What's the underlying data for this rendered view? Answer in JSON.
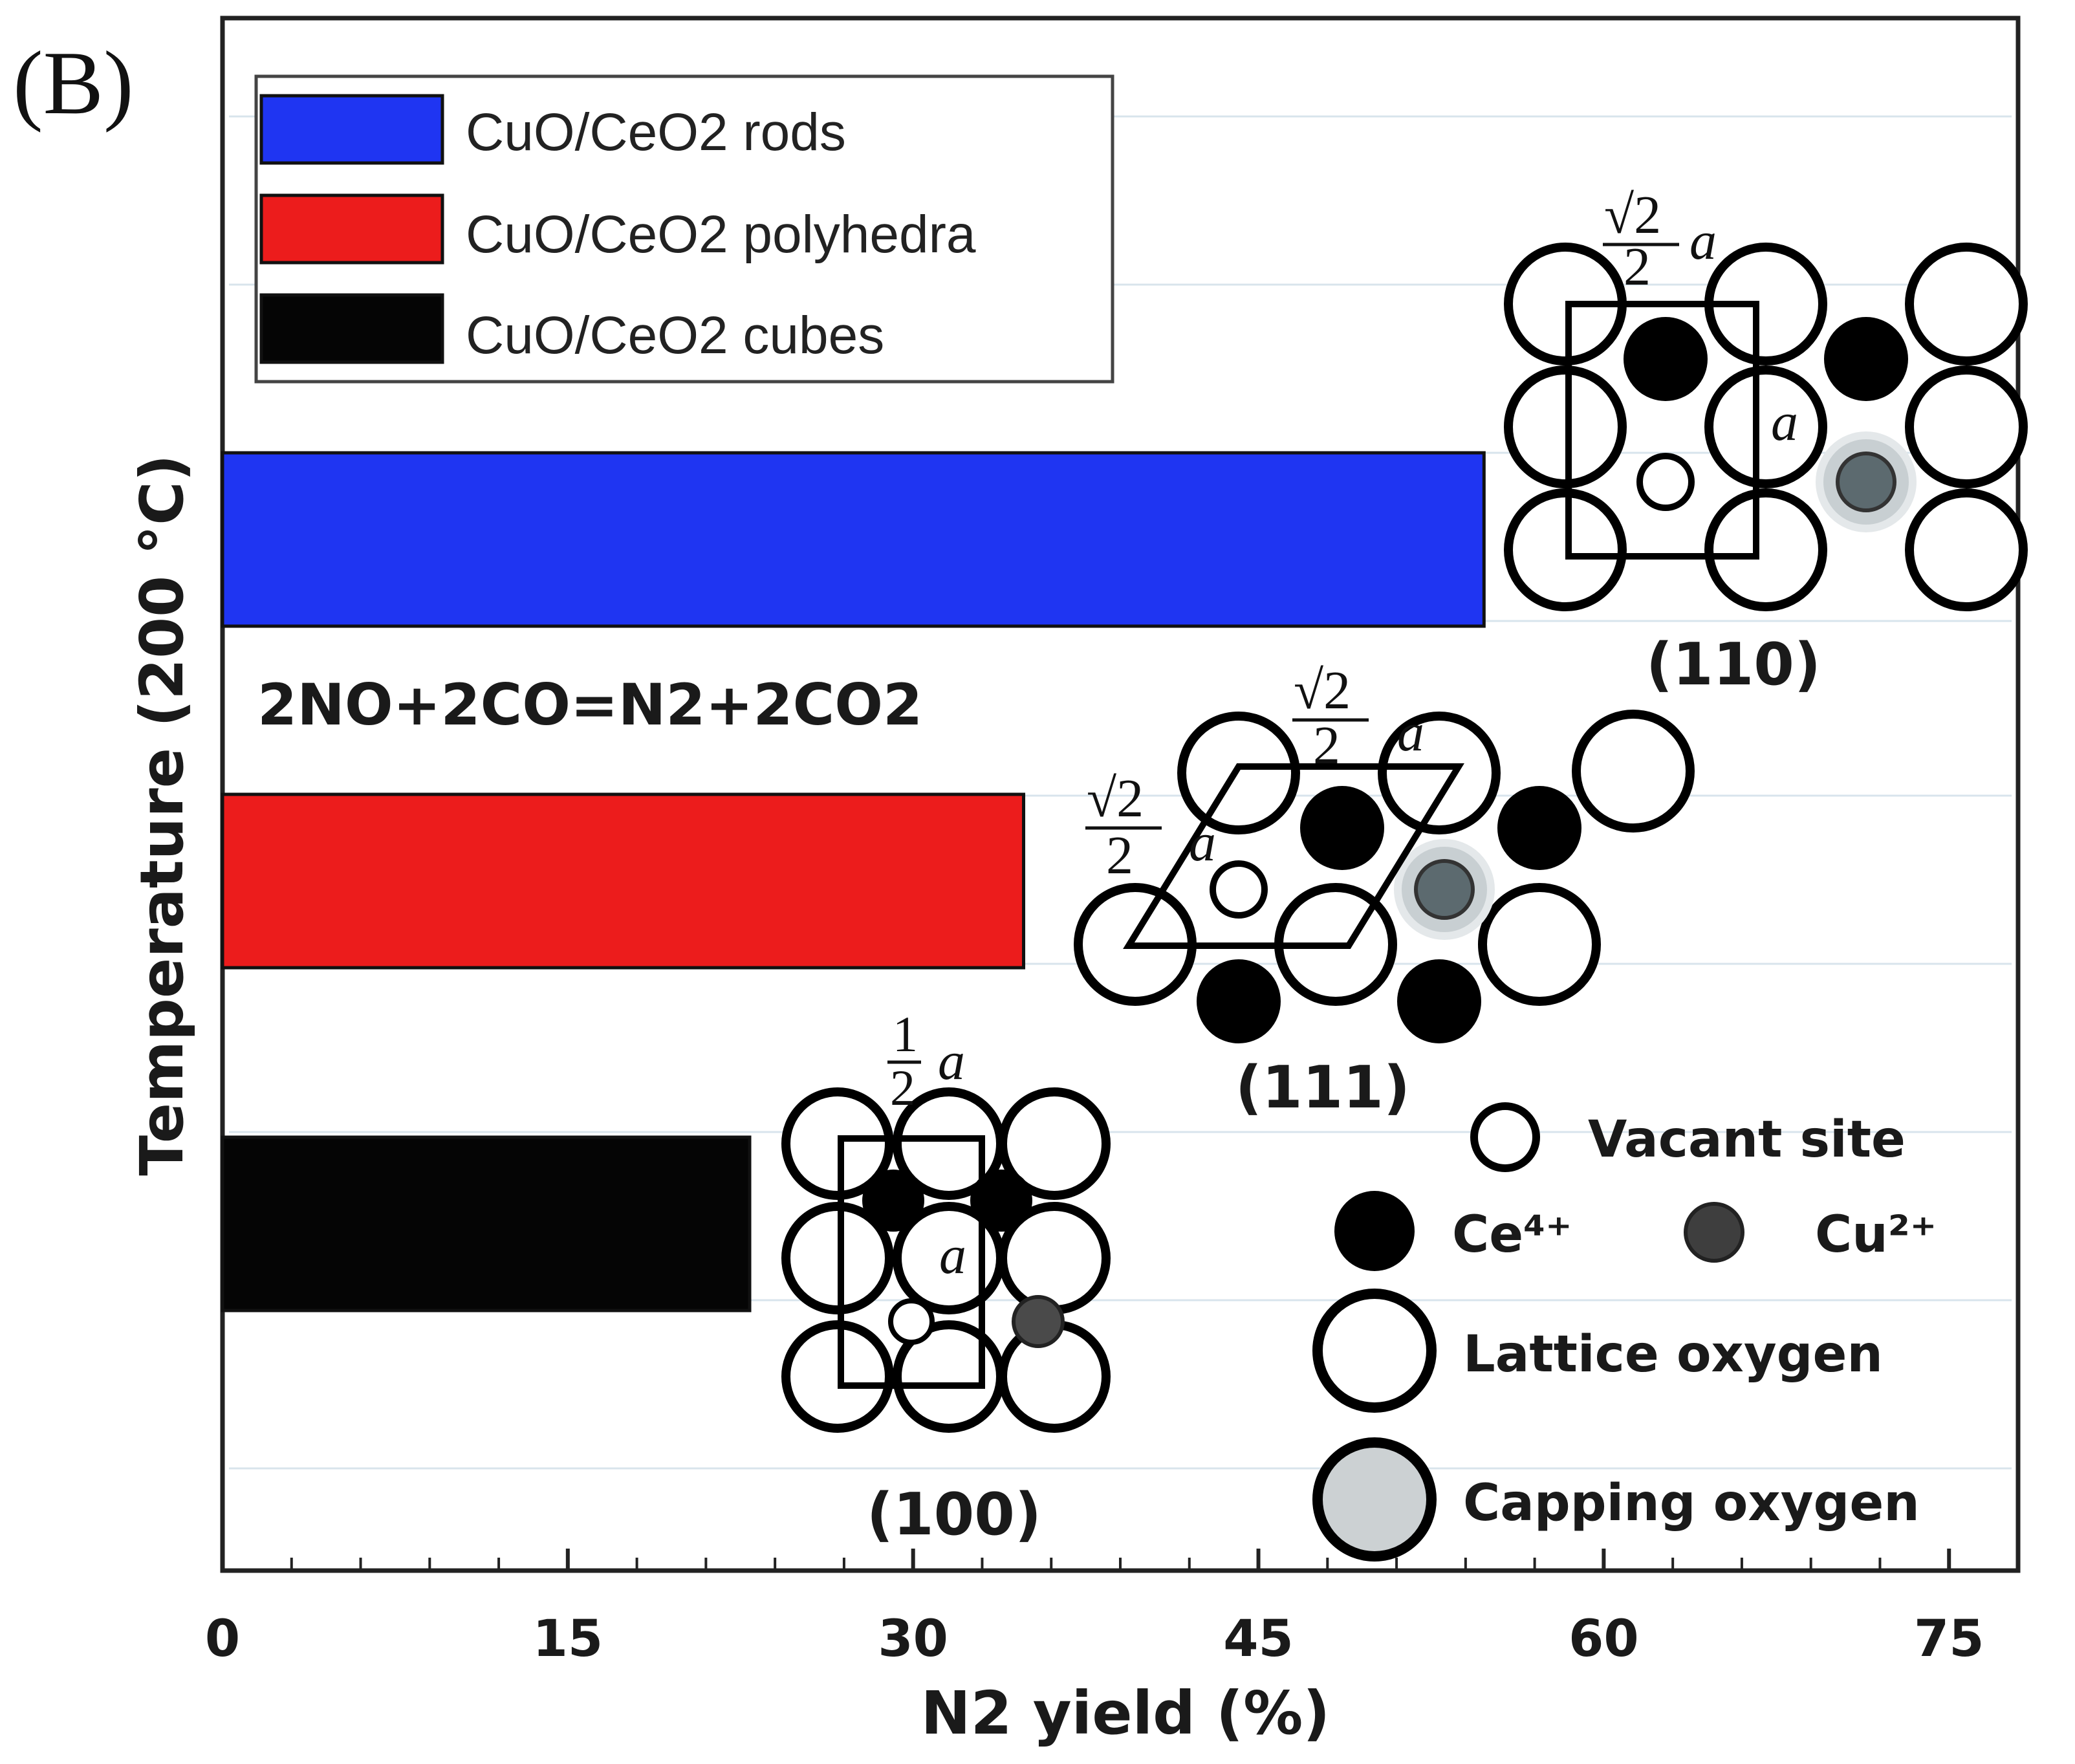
{
  "chart_data": {
    "type": "bar",
    "orientation": "horizontal",
    "panel_label": "(B)",
    "xlabel": "N2 yield (%)",
    "ylabel": "Temperature (200 °C)",
    "xlim": [
      0,
      78
    ],
    "xticks": [
      "0",
      "15",
      "30",
      "45",
      "60",
      "75"
    ],
    "reaction": "2NO+2CO=N2+2CO2",
    "series": [
      {
        "name": "CuO/CeO2 rods",
        "value": 54.8,
        "color": "#1f35f2"
      },
      {
        "name": "CuO/CeO2 polyhedra",
        "value": 34.8,
        "color": "#ec1c1c"
      },
      {
        "name": "CuO/CeO2 cubes",
        "value": 22.9,
        "color": "#050505"
      }
    ],
    "legend": [
      {
        "label": "CuO/CeO2 rods",
        "color": "#1f35f2"
      },
      {
        "label": "CuO/CeO2 polyhedra",
        "color": "#ec1c1c"
      },
      {
        "label": "CuO/CeO2 cubes",
        "color": "#050505"
      }
    ],
    "facets": [
      {
        "label": "(110)",
        "spacing": "√2/2 a",
        "a": "a"
      },
      {
        "label": "(111)",
        "spacing_top": "√2/2 a",
        "spacing_left": "√2/2 a"
      },
      {
        "label": "(100)",
        "spacing": "1/2 a",
        "a": "a"
      }
    ],
    "symbol_legend": [
      {
        "label": "Vacant site"
      },
      {
        "label": "Ce⁴⁺"
      },
      {
        "label": "Cu²⁺"
      },
      {
        "label": "Lattice oxygen"
      },
      {
        "label": "Capping oxygen"
      }
    ]
  }
}
